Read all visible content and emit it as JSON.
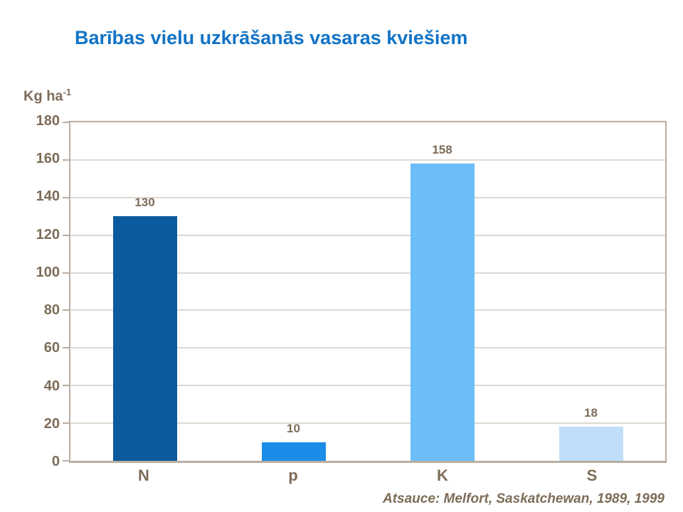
{
  "slide": {
    "title": "Barības vielu uzkrāšanās vasaras kviešiem",
    "source_note": "Atsauce: Melfort, Saskatchewan, 1989, 1999"
  },
  "y_axis": {
    "unit_text": "Kg ha",
    "unit_exponent": "-1"
  },
  "chart_data": {
    "type": "bar",
    "title": "Barības vielu uzkrāšanās vasaras kviešiem",
    "categories": [
      "N",
      "p",
      "K",
      "S"
    ],
    "values": [
      130,
      10,
      158,
      18
    ],
    "data_labels": [
      "130",
      "10",
      "158",
      "18"
    ],
    "ylabel": "Kg ha⁻¹",
    "xlabel": "",
    "ylim": [
      0,
      180
    ],
    "ytick_step": 20,
    "grid": true,
    "legend_position": "none",
    "bar_colors": [
      "#0b5a9d",
      "#1b8ce8",
      "#6cbdf8",
      "#c0defa"
    ],
    "annotation": "Atsauce: Melfort, Saskatchewan, 1989, 1999"
  },
  "colors": {
    "title_text": "#1173c5",
    "axis_text": "#7d6c58",
    "plot_border": "#b9aea1",
    "gridline": "#ded7d0",
    "background": "#ffffff"
  }
}
